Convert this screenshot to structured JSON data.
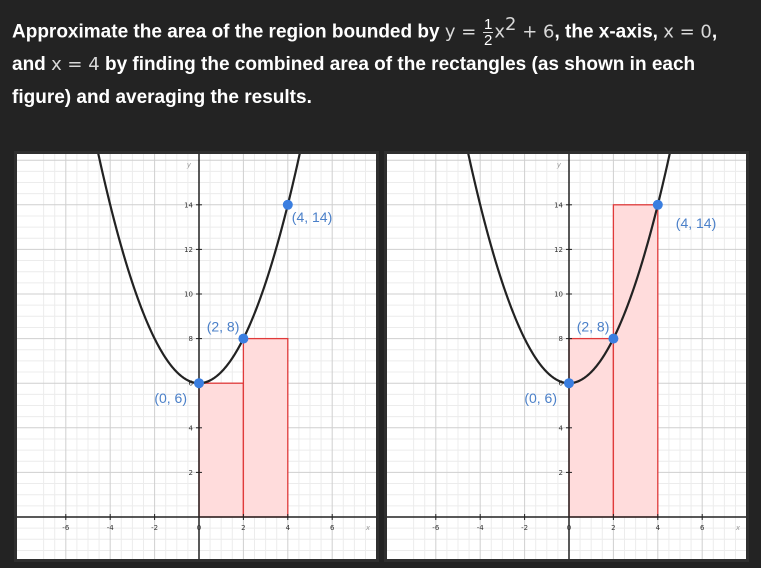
{
  "question": {
    "l1_a": "Approximate the area of the region bounded by ",
    "l1_y": "y",
    "l1_eq": " = ",
    "frac_num": "1",
    "frac_den": "2",
    "l1_x": "x",
    "l1_exp": "2",
    "l1_plus": " + 6",
    "l1_b": ", the x-axis, ",
    "l1_x0": "x = 0",
    "l1_c": ",",
    "l2_a": "and ",
    "l2_x4": "x = 4",
    "l2_b": " by finding the combined area of the rectangles (as shown in each",
    "l3": "figure) and averaging the results."
  },
  "colors": {
    "curve": "#222222",
    "rect_fill": "#ffdcdc",
    "rect_stroke": "#e03a3a",
    "point": "#3a7ee0",
    "label": "#4b80c9",
    "grid_major": "#cfcfcf",
    "grid_minor": "#ececec",
    "axis": "#222222"
  },
  "chart_data": [
    {
      "type": "line",
      "function": "y = (1/2)x^2 + 6",
      "xlim": [
        -7,
        8
      ],
      "ylim": [
        -1.5,
        17.5
      ],
      "x_ticks": [
        -6,
        -4,
        -2,
        0,
        2,
        4,
        6
      ],
      "y_ticks": [
        2,
        4,
        6,
        8,
        10,
        12,
        14
      ],
      "x_axis_name": "x",
      "y_axis_name": "y",
      "grid": true,
      "rectangles": [
        {
          "x0": 0,
          "x1": 2,
          "height": 6
        },
        {
          "x0": 2,
          "x1": 4,
          "height": 8
        }
      ],
      "points": [
        {
          "x": 0,
          "y": 6,
          "label": "(0, 6)",
          "anchor": "below-left"
        },
        {
          "x": 2,
          "y": 8,
          "label": "(2, 8)",
          "anchor": "above-left"
        },
        {
          "x": 4,
          "y": 14,
          "label": "(4, 14)",
          "anchor": "below-right"
        }
      ]
    },
    {
      "type": "line",
      "function": "y = (1/2)x^2 + 6",
      "xlim": [
        -7,
        8
      ],
      "ylim": [
        -1.5,
        17.5
      ],
      "x_ticks": [
        -6,
        -4,
        -2,
        0,
        2,
        4,
        6
      ],
      "y_ticks": [
        2,
        4,
        6,
        8,
        10,
        12,
        14
      ],
      "x_axis_name": "x",
      "y_axis_name": "y",
      "grid": true,
      "rectangles": [
        {
          "x0": 0,
          "x1": 2,
          "height": 8
        },
        {
          "x0": 2,
          "x1": 4,
          "height": 14
        }
      ],
      "points": [
        {
          "x": 0,
          "y": 6,
          "label": "(0, 6)",
          "anchor": "below-left"
        },
        {
          "x": 2,
          "y": 8,
          "label": "(2, 8)",
          "anchor": "above-left"
        },
        {
          "x": 4,
          "y": 14,
          "label": "(4, 14)",
          "anchor": "far-right"
        }
      ]
    }
  ]
}
